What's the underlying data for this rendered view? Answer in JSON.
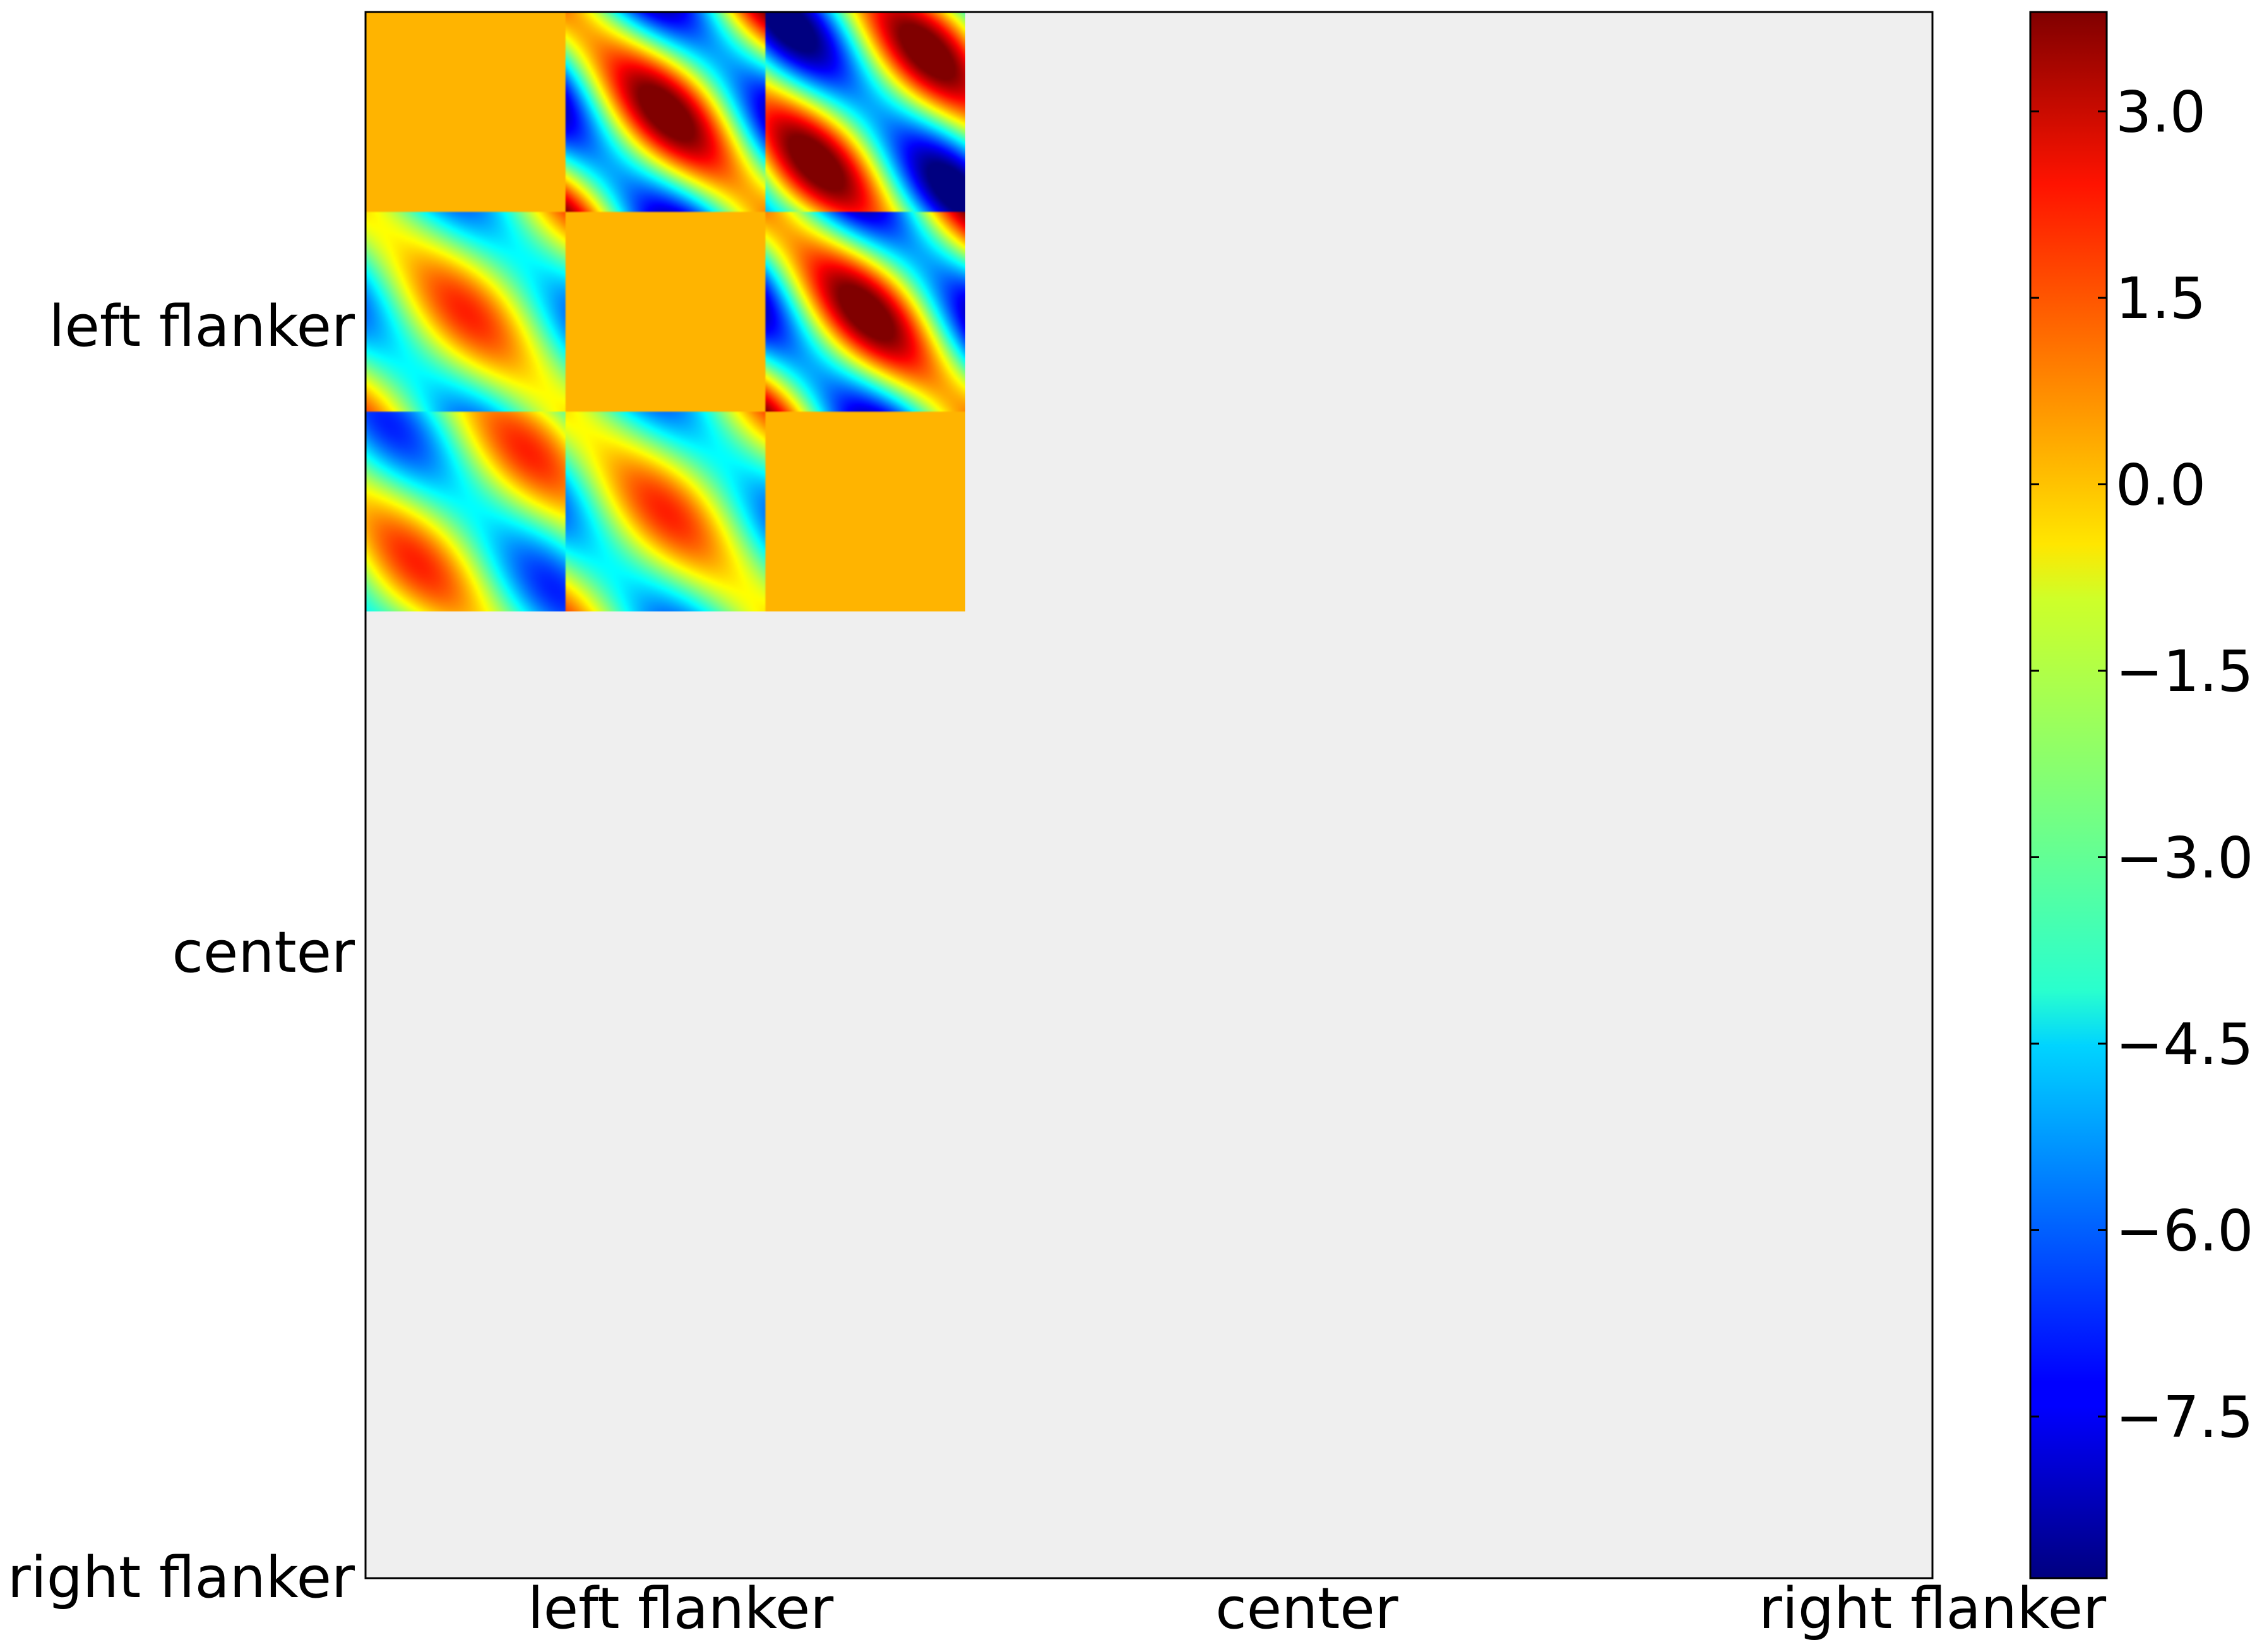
{
  "chart_data": {
    "type": "heatmap",
    "title": "",
    "xlabel": "",
    "ylabel": "",
    "x_tick_labels": [
      "left flanker",
      "center",
      "right flanker"
    ],
    "y_tick_labels": [
      "left flanker",
      "center",
      "right flanker"
    ],
    "colorbar": {
      "colormap": "jet",
      "range": [
        -8.8,
        3.8
      ],
      "tick_values": [
        3.0,
        1.5,
        0.0,
        -1.5,
        -3.0,
        -4.5,
        -6.0,
        -7.5
      ],
      "tick_labels": [
        "3.0",
        "1.5",
        "0.0",
        "−1.5",
        "−3.0",
        "−4.5",
        "−6.0",
        "−7.5"
      ]
    },
    "grid": false,
    "background_color": "#efefef",
    "matrix": {
      "blocks": 3,
      "diagonal_value": 0.0,
      "value_range": [
        -8.8,
        3.8
      ],
      "description_cells": [
        [
          "0",
          "pattern",
          "pattern"
        ],
        [
          "pattern",
          "0",
          "pattern"
        ],
        [
          "pattern",
          "pattern",
          "0"
        ]
      ]
    }
  }
}
